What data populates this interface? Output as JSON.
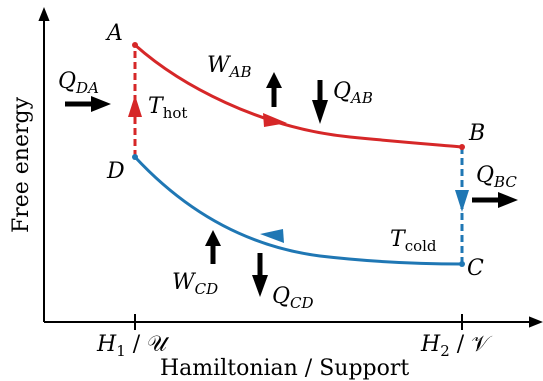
{
  "axes": {
    "y_label": "Free energy",
    "x_label": "Hamiltonian / Support",
    "ticks": [
      {
        "main": "H",
        "sub": "1",
        "suffix": " / 𝒰"
      },
      {
        "main": "H",
        "sub": "2",
        "suffix": " / 𝒱"
      }
    ]
  },
  "points": [
    {
      "name": "A"
    },
    {
      "name": "B"
    },
    {
      "name": "C"
    },
    {
      "name": "D"
    }
  ],
  "labels": {
    "W_AB": {
      "main": "W",
      "sub": "AB"
    },
    "Q_AB": {
      "main": "Q",
      "sub": "AB"
    },
    "Q_DA": {
      "main": "Q",
      "sub": "DA"
    },
    "Q_BC": {
      "main": "Q",
      "sub": "BC"
    },
    "W_CD": {
      "main": "W",
      "sub": "CD"
    },
    "Q_CD": {
      "main": "Q",
      "sub": "CD"
    },
    "T_hot": {
      "main": "T",
      "sub": "hot"
    },
    "T_cold": {
      "main": "T",
      "sub": "cold"
    }
  },
  "colors": {
    "hot": "#d62728",
    "cold": "#1f77b4",
    "axis": "#000000"
  }
}
